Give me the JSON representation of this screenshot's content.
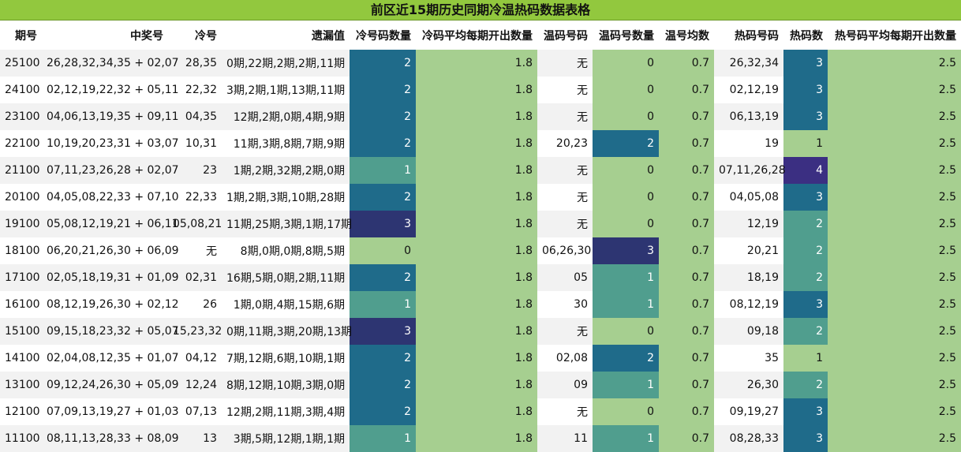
{
  "title": "前区近15期历史同期冷温热码数据表格",
  "headers": [
    "期号",
    "中奖号",
    "冷号",
    "遗漏值",
    "冷号码数量",
    "冷码平均每期开出数量",
    "温码号码",
    "温码号数量",
    "温号均数",
    "热码号码",
    "热码数",
    "热号码平均每期开出数量"
  ],
  "rows": [
    {
      "issue": "25100",
      "win": "26,28,32,34,35 + 02,07",
      "cold": "28,35",
      "miss": "0期,22期,2期,2期,11期",
      "cold_count": "2",
      "cold_avg": "1.8",
      "warm": "无",
      "warm_count": "0",
      "warm_avg": "0.7",
      "hot": "26,32,34",
      "hot_count": "3",
      "hot_avg": "2.5"
    },
    {
      "issue": "24100",
      "win": "02,12,19,22,32 + 05,11",
      "cold": "22,32",
      "miss": "3期,2期,1期,13期,11期",
      "cold_count": "2",
      "cold_avg": "1.8",
      "warm": "无",
      "warm_count": "0",
      "warm_avg": "0.7",
      "hot": "02,12,19",
      "hot_count": "3",
      "hot_avg": "2.5"
    },
    {
      "issue": "23100",
      "win": "04,06,13,19,35 + 09,11",
      "cold": "04,35",
      "miss": "12期,2期,0期,4期,9期",
      "cold_count": "2",
      "cold_avg": "1.8",
      "warm": "无",
      "warm_count": "0",
      "warm_avg": "0.7",
      "hot": "06,13,19",
      "hot_count": "3",
      "hot_avg": "2.5"
    },
    {
      "issue": "22100",
      "win": "10,19,20,23,31 + 03,07",
      "cold": "10,31",
      "miss": "11期,3期,8期,7期,9期",
      "cold_count": "2",
      "cold_avg": "1.8",
      "warm": "20,23",
      "warm_count": "2",
      "warm_avg": "0.7",
      "hot": "19",
      "hot_count": "1",
      "hot_avg": "2.5"
    },
    {
      "issue": "21100",
      "win": "07,11,23,26,28 + 02,07",
      "cold": "23",
      "miss": "1期,2期,32期,2期,0期",
      "cold_count": "1",
      "cold_avg": "1.8",
      "warm": "无",
      "warm_count": "0",
      "warm_avg": "0.7",
      "hot": "07,11,26,28",
      "hot_count": "4",
      "hot_avg": "2.5"
    },
    {
      "issue": "20100",
      "win": "04,05,08,22,33 + 07,10",
      "cold": "22,33",
      "miss": "1期,2期,3期,10期,28期",
      "cold_count": "2",
      "cold_avg": "1.8",
      "warm": "无",
      "warm_count": "0",
      "warm_avg": "0.7",
      "hot": "04,05,08",
      "hot_count": "3",
      "hot_avg": "2.5"
    },
    {
      "issue": "19100",
      "win": "05,08,12,19,21 + 06,11",
      "cold": "05,08,21",
      "miss": "11期,25期,3期,1期,17期",
      "cold_count": "3",
      "cold_avg": "1.8",
      "warm": "无",
      "warm_count": "0",
      "warm_avg": "0.7",
      "hot": "12,19",
      "hot_count": "2",
      "hot_avg": "2.5"
    },
    {
      "issue": "18100",
      "win": "06,20,21,26,30 + 06,09",
      "cold": "无",
      "miss": "8期,0期,0期,8期,5期",
      "cold_count": "0",
      "cold_avg": "1.8",
      "warm": "06,26,30",
      "warm_count": "3",
      "warm_avg": "0.7",
      "hot": "20,21",
      "hot_count": "2",
      "hot_avg": "2.5"
    },
    {
      "issue": "17100",
      "win": "02,05,18,19,31 + 01,09",
      "cold": "02,31",
      "miss": "16期,5期,0期,2期,11期",
      "cold_count": "2",
      "cold_avg": "1.8",
      "warm": "05",
      "warm_count": "1",
      "warm_avg": "0.7",
      "hot": "18,19",
      "hot_count": "2",
      "hot_avg": "2.5"
    },
    {
      "issue": "16100",
      "win": "08,12,19,26,30 + 02,12",
      "cold": "26",
      "miss": "1期,0期,4期,15期,6期",
      "cold_count": "1",
      "cold_avg": "1.8",
      "warm": "30",
      "warm_count": "1",
      "warm_avg": "0.7",
      "hot": "08,12,19",
      "hot_count": "3",
      "hot_avg": "2.5"
    },
    {
      "issue": "15100",
      "win": "09,15,18,23,32 + 05,07",
      "cold": "15,23,32",
      "miss": "0期,11期,3期,20期,13期",
      "cold_count": "3",
      "cold_avg": "1.8",
      "warm": "无",
      "warm_count": "0",
      "warm_avg": "0.7",
      "hot": "09,18",
      "hot_count": "2",
      "hot_avg": "2.5"
    },
    {
      "issue": "14100",
      "win": "02,04,08,12,35 + 01,07",
      "cold": "04,12",
      "miss": "7期,12期,6期,10期,1期",
      "cold_count": "2",
      "cold_avg": "1.8",
      "warm": "02,08",
      "warm_count": "2",
      "warm_avg": "0.7",
      "hot": "35",
      "hot_count": "1",
      "hot_avg": "2.5"
    },
    {
      "issue": "13100",
      "win": "09,12,24,26,30 + 05,09",
      "cold": "12,24",
      "miss": "8期,12期,10期,3期,0期",
      "cold_count": "2",
      "cold_avg": "1.8",
      "warm": "09",
      "warm_count": "1",
      "warm_avg": "0.7",
      "hot": "26,30",
      "hot_count": "2",
      "hot_avg": "2.5"
    },
    {
      "issue": "12100",
      "win": "07,09,13,19,27 + 01,03",
      "cold": "07,13",
      "miss": "12期,2期,11期,3期,4期",
      "cold_count": "2",
      "cold_avg": "1.8",
      "warm": "无",
      "warm_count": "0",
      "warm_avg": "0.7",
      "hot": "09,19,27",
      "hot_count": "3",
      "hot_avg": "2.5"
    },
    {
      "issue": "11100",
      "win": "08,11,13,28,33 + 08,09",
      "cold": "13",
      "miss": "3期,5期,12期,1期,1期",
      "cold_count": "1",
      "cold_avg": "1.8",
      "warm": "11",
      "warm_count": "1",
      "warm_avg": "0.7",
      "hot": "08,28,33",
      "hot_count": "3",
      "hot_avg": "2.5"
    }
  ]
}
